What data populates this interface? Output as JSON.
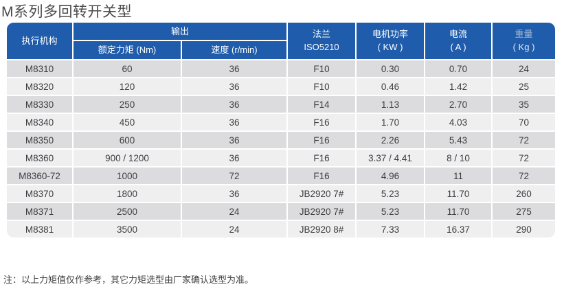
{
  "title": "M系列多回转开关型",
  "note": "注：以上力矩值仅作参考，其它力矩选型由厂家确认选型为准。",
  "colors": {
    "header_blue": "#1f5cab",
    "row_dark": "#dcdcde",
    "row_light": "#efeff0",
    "title_grey": "#4b4b4d",
    "body_text": "#3d3d3f"
  },
  "table": {
    "headers": {
      "actuator": "执行机构",
      "output_group": "输出",
      "rated_torque": "额定力矩 (Nm)",
      "speed": "速度 (r/min)",
      "flange_line1": "法兰",
      "flange_line2": "ISO5210",
      "power_line1": "电机功率",
      "power_line2": "( KW )",
      "current_line1": "电流",
      "current_line2": "( A )",
      "weight_line1": "重量",
      "weight_line2": "( Kg )"
    },
    "rows": [
      {
        "model": "M8310",
        "torque": "60",
        "speed": "36",
        "flange": "F10",
        "power": "0.30",
        "current": "0.70",
        "weight": "24"
      },
      {
        "model": "M8320",
        "torque": "120",
        "speed": "36",
        "flange": "F10",
        "power": "0.46",
        "current": "1.42",
        "weight": "25"
      },
      {
        "model": "M8330",
        "torque": "250",
        "speed": "36",
        "flange": "F14",
        "power": "1.13",
        "current": "2.70",
        "weight": "35"
      },
      {
        "model": "M8340",
        "torque": "450",
        "speed": "36",
        "flange": "F16",
        "power": "1.70",
        "current": "4.03",
        "weight": "70"
      },
      {
        "model": "M8350",
        "torque": "600",
        "speed": "36",
        "flange": "F16",
        "power": "2.26",
        "current": "5.43",
        "weight": "72"
      },
      {
        "model": "M8360",
        "torque": "900 / 1200",
        "speed": "36",
        "flange": "F16",
        "power": "3.37 / 4.41",
        "current": "8 / 10",
        "weight": "72"
      },
      {
        "model": "M8360-72",
        "torque": "1000",
        "speed": "72",
        "flange": "F16",
        "power": "4.96",
        "current": "11",
        "weight": "72"
      },
      {
        "model": "M8370",
        "torque": "1800",
        "speed": "36",
        "flange": "JB2920 7#",
        "power": "5.23",
        "current": "11.70",
        "weight": "260"
      },
      {
        "model": "M8371",
        "torque": "2500",
        "speed": "24",
        "flange": "JB2920 7#",
        "power": "5.23",
        "current": "11.70",
        "weight": "275"
      },
      {
        "model": "M8381",
        "torque": "3500",
        "speed": "24",
        "flange": "JB2920 8#",
        "power": "7.33",
        "current": "16.37",
        "weight": "290"
      }
    ]
  }
}
